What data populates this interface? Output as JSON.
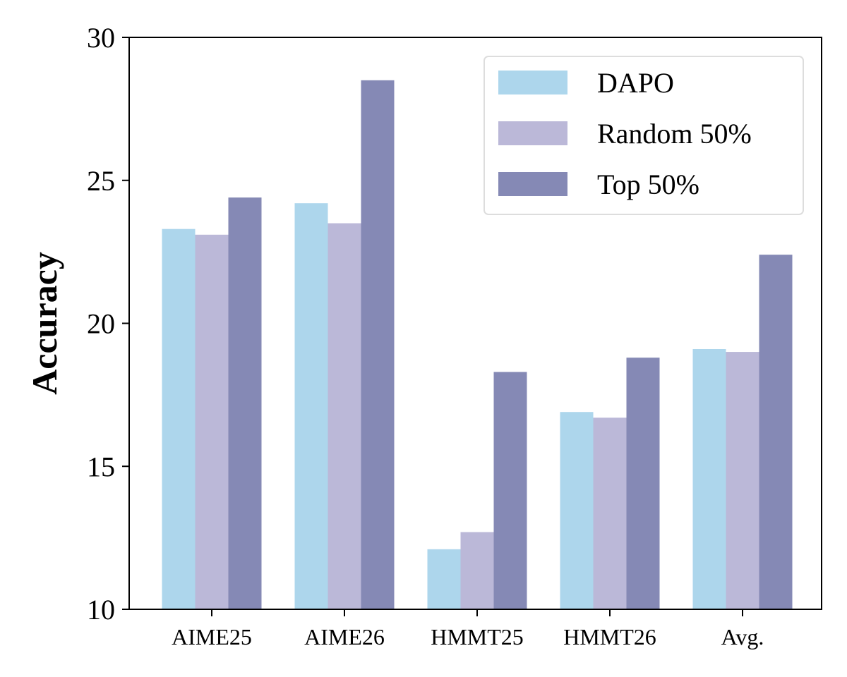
{
  "chart_data": {
    "type": "bar",
    "title": "",
    "xlabel": "",
    "ylabel": "Accuracy",
    "categories": [
      "AIME25",
      "AIME26",
      "HMMT25",
      "HMMT26",
      "Avg."
    ],
    "series": [
      {
        "name": "DAPO",
        "color": "#add6ec",
        "values": [
          23.3,
          24.2,
          12.1,
          16.9,
          19.1
        ]
      },
      {
        "name": "Random 50%",
        "color": "#bbb8d8",
        "values": [
          23.1,
          23.5,
          12.7,
          16.7,
          19.0
        ]
      },
      {
        "name": "Top 50%",
        "color": "#8589b5",
        "values": [
          24.4,
          28.5,
          18.3,
          18.8,
          22.4
        ]
      }
    ],
    "ylim": [
      10,
      30
    ],
    "yticks": [
      10,
      15,
      20,
      25,
      30
    ],
    "grid": false,
    "legend_position": "top-right"
  }
}
